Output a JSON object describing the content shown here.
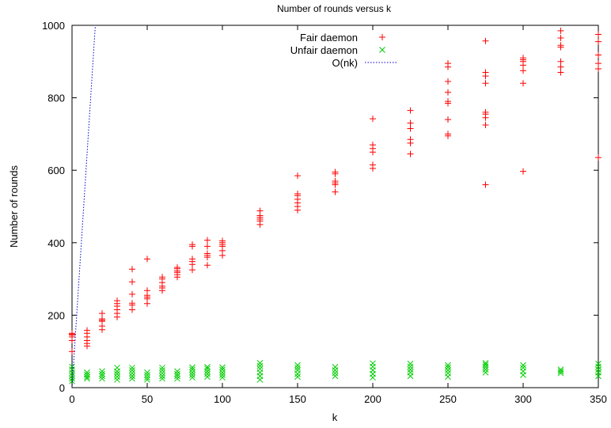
{
  "chart_data": {
    "type": "scatter",
    "title": "Number of rounds versus k",
    "xlabel": "k",
    "ylabel": "Number of rounds",
    "xlim": [
      0,
      350
    ],
    "ylim": [
      0,
      1000
    ],
    "xticks": [
      0,
      50,
      100,
      150,
      200,
      250,
      300,
      350
    ],
    "yticks": [
      0,
      200,
      400,
      600,
      800,
      1000
    ],
    "grid": false,
    "legend_position": "top-right",
    "series": [
      {
        "name": "Fair daemon",
        "marker": "plus",
        "color": "#ff0000",
        "points": [
          [
            0,
            100
          ],
          [
            0,
            130
          ],
          [
            0,
            140
          ],
          [
            0,
            145
          ],
          [
            0,
            148
          ],
          [
            0,
            150
          ],
          [
            10,
            115
          ],
          [
            10,
            122
          ],
          [
            10,
            130
          ],
          [
            10,
            140
          ],
          [
            10,
            150
          ],
          [
            10,
            158
          ],
          [
            20,
            160
          ],
          [
            20,
            170
          ],
          [
            20,
            183
          ],
          [
            20,
            186
          ],
          [
            20,
            190
          ],
          [
            20,
            205
          ],
          [
            30,
            195
          ],
          [
            30,
            205
          ],
          [
            30,
            215
          ],
          [
            30,
            225
          ],
          [
            30,
            232
          ],
          [
            30,
            240
          ],
          [
            40,
            215
          ],
          [
            40,
            228
          ],
          [
            40,
            233
          ],
          [
            40,
            258
          ],
          [
            40,
            292
          ],
          [
            40,
            327
          ],
          [
            50,
            232
          ],
          [
            50,
            245
          ],
          [
            50,
            250
          ],
          [
            50,
            255
          ],
          [
            50,
            268
          ],
          [
            50,
            355
          ],
          [
            60,
            268
          ],
          [
            60,
            275
          ],
          [
            60,
            280
          ],
          [
            60,
            290
          ],
          [
            60,
            300
          ],
          [
            60,
            305
          ],
          [
            70,
            305
          ],
          [
            70,
            312
          ],
          [
            70,
            318
          ],
          [
            70,
            322
          ],
          [
            70,
            328
          ],
          [
            70,
            332
          ],
          [
            80,
            325
          ],
          [
            80,
            340
          ],
          [
            80,
            348
          ],
          [
            80,
            355
          ],
          [
            80,
            390
          ],
          [
            80,
            395
          ],
          [
            90,
            338
          ],
          [
            90,
            360
          ],
          [
            90,
            365
          ],
          [
            90,
            370
          ],
          [
            90,
            390
          ],
          [
            90,
            407
          ],
          [
            100,
            365
          ],
          [
            100,
            378
          ],
          [
            100,
            390
          ],
          [
            100,
            395
          ],
          [
            100,
            400
          ],
          [
            100,
            405
          ],
          [
            125,
            450
          ],
          [
            125,
            460
          ],
          [
            125,
            465
          ],
          [
            125,
            470
          ],
          [
            125,
            475
          ],
          [
            125,
            488
          ],
          [
            150,
            490
          ],
          [
            150,
            500
          ],
          [
            150,
            510
          ],
          [
            150,
            520
          ],
          [
            150,
            530
          ],
          [
            150,
            535
          ],
          [
            150,
            585
          ],
          [
            175,
            540
          ],
          [
            175,
            560
          ],
          [
            175,
            565
          ],
          [
            175,
            570
          ],
          [
            175,
            590
          ],
          [
            175,
            595
          ],
          [
            200,
            605
          ],
          [
            200,
            615
          ],
          [
            200,
            650
          ],
          [
            200,
            660
          ],
          [
            200,
            670
          ],
          [
            200,
            742
          ],
          [
            225,
            645
          ],
          [
            225,
            675
          ],
          [
            225,
            685
          ],
          [
            225,
            715
          ],
          [
            225,
            730
          ],
          [
            225,
            765
          ],
          [
            250,
            695
          ],
          [
            250,
            700
          ],
          [
            250,
            740
          ],
          [
            250,
            785
          ],
          [
            250,
            790
          ],
          [
            250,
            815
          ],
          [
            250,
            845
          ],
          [
            250,
            885
          ],
          [
            250,
            895
          ],
          [
            275,
            560
          ],
          [
            275,
            725
          ],
          [
            275,
            745
          ],
          [
            275,
            755
          ],
          [
            275,
            760
          ],
          [
            275,
            840
          ],
          [
            275,
            860
          ],
          [
            275,
            870
          ],
          [
            275,
            957
          ],
          [
            300,
            597
          ],
          [
            300,
            840
          ],
          [
            300,
            875
          ],
          [
            300,
            890
          ],
          [
            300,
            900
          ],
          [
            300,
            905
          ],
          [
            300,
            910
          ],
          [
            325,
            870
          ],
          [
            325,
            885
          ],
          [
            325,
            900
          ],
          [
            325,
            940
          ],
          [
            325,
            945
          ],
          [
            325,
            965
          ],
          [
            325,
            985
          ],
          [
            350,
            635
          ],
          [
            350,
            880
          ],
          [
            350,
            895
          ],
          [
            350,
            918
          ],
          [
            350,
            955
          ],
          [
            350,
            975
          ]
        ]
      },
      {
        "name": "Unfair daemon",
        "marker": "cross",
        "color": "#00cc00",
        "points": [
          [
            0,
            18
          ],
          [
            0,
            25
          ],
          [
            0,
            33
          ],
          [
            0,
            40
          ],
          [
            0,
            50
          ],
          [
            0,
            58
          ],
          [
            10,
            25
          ],
          [
            10,
            30
          ],
          [
            10,
            36
          ],
          [
            10,
            42
          ],
          [
            20,
            25
          ],
          [
            20,
            32
          ],
          [
            20,
            38
          ],
          [
            20,
            45
          ],
          [
            30,
            22
          ],
          [
            30,
            30
          ],
          [
            30,
            38
          ],
          [
            30,
            45
          ],
          [
            30,
            55
          ],
          [
            40,
            25
          ],
          [
            40,
            32
          ],
          [
            40,
            40
          ],
          [
            40,
            48
          ],
          [
            40,
            55
          ],
          [
            50,
            22
          ],
          [
            50,
            28
          ],
          [
            50,
            35
          ],
          [
            50,
            42
          ],
          [
            60,
            25
          ],
          [
            60,
            32
          ],
          [
            60,
            40
          ],
          [
            60,
            48
          ],
          [
            60,
            55
          ],
          [
            70,
            25
          ],
          [
            70,
            32
          ],
          [
            70,
            38
          ],
          [
            70,
            45
          ],
          [
            80,
            28
          ],
          [
            80,
            35
          ],
          [
            80,
            42
          ],
          [
            80,
            50
          ],
          [
            80,
            56
          ],
          [
            90,
            30
          ],
          [
            90,
            38
          ],
          [
            90,
            45
          ],
          [
            90,
            52
          ],
          [
            90,
            57
          ],
          [
            100,
            28
          ],
          [
            100,
            35
          ],
          [
            100,
            42
          ],
          [
            100,
            50
          ],
          [
            100,
            56
          ],
          [
            125,
            22
          ],
          [
            125,
            32
          ],
          [
            125,
            42
          ],
          [
            125,
            52
          ],
          [
            125,
            60
          ],
          [
            125,
            68
          ],
          [
            150,
            30
          ],
          [
            150,
            38
          ],
          [
            150,
            48
          ],
          [
            150,
            55
          ],
          [
            150,
            62
          ],
          [
            175,
            32
          ],
          [
            175,
            40
          ],
          [
            175,
            48
          ],
          [
            175,
            57
          ],
          [
            200,
            28
          ],
          [
            200,
            38
          ],
          [
            200,
            48
          ],
          [
            200,
            58
          ],
          [
            200,
            67
          ],
          [
            225,
            32
          ],
          [
            225,
            42
          ],
          [
            225,
            50
          ],
          [
            225,
            58
          ],
          [
            225,
            66
          ],
          [
            250,
            30
          ],
          [
            250,
            40
          ],
          [
            250,
            48
          ],
          [
            250,
            56
          ],
          [
            250,
            62
          ],
          [
            275,
            42
          ],
          [
            275,
            50
          ],
          [
            275,
            57
          ],
          [
            275,
            63
          ],
          [
            275,
            68
          ],
          [
            300,
            35
          ],
          [
            300,
            45
          ],
          [
            300,
            55
          ],
          [
            300,
            62
          ],
          [
            325,
            40
          ],
          [
            325,
            45
          ],
          [
            325,
            50
          ],
          [
            350,
            32
          ],
          [
            350,
            42
          ],
          [
            350,
            50
          ],
          [
            350,
            58
          ],
          [
            350,
            66
          ]
        ]
      },
      {
        "name": "O(nk)",
        "type": "line",
        "style": "dotted",
        "color": "#0000cc",
        "points": [
          [
            0,
            0
          ],
          [
            15.5,
            1000
          ]
        ]
      }
    ]
  }
}
